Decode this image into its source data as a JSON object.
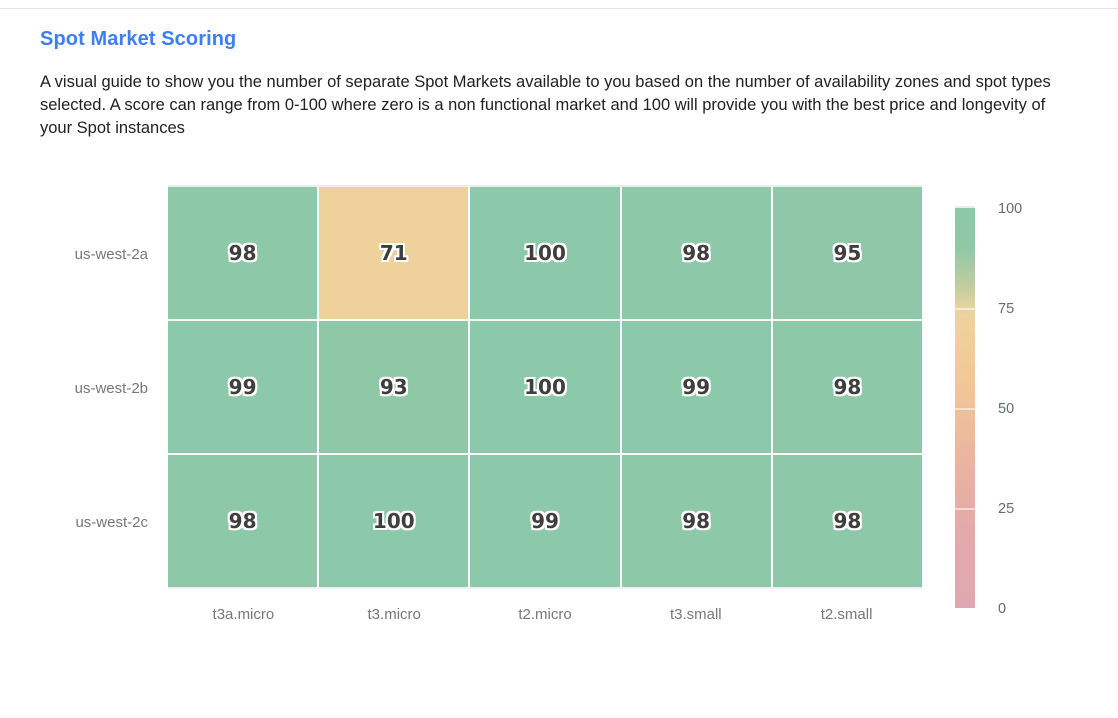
{
  "header": {
    "title": "Spot Market Scoring",
    "description": "A visual guide to show you the number of separate Spot Markets available to you based on the number of availability zones and spot types selected. A score can range from 0-100 where zero is a non functional market and 100 will provide you with the best price and longevity of your Spot instances"
  },
  "colors": {
    "title_blue": "#3d7ef4",
    "body_text": "#202124",
    "axis_label_gray": "#75787b",
    "cell_text": "#3e3e3e",
    "divider": "#e4e4e4",
    "grid_line_white": "#ffffff",
    "green_high": "#8cc8aa",
    "tan_mid": "#f1d09b",
    "pink_low": "#dfa7b1"
  },
  "chart_data": {
    "type": "heatmap",
    "title": "Spot Market Scoring",
    "rows": [
      "us-west-2a",
      "us-west-2b",
      "us-west-2c"
    ],
    "columns": [
      "t3a.micro",
      "t3.micro",
      "t2.micro",
      "t3.small",
      "t2.small"
    ],
    "values": [
      [
        98,
        71,
        100,
        98,
        95
      ],
      [
        99,
        93,
        100,
        99,
        98
      ],
      [
        98,
        100,
        99,
        98,
        98
      ]
    ],
    "value_range": [
      0,
      100
    ],
    "grid": false,
    "colorbar": {
      "position": "right",
      "ticks": [
        100,
        75,
        50,
        25,
        0
      ],
      "gradient_stops": [
        {
          "v": 100,
          "c": "#8cc8aa"
        },
        {
          "v": 90,
          "c": "#90c8a5"
        },
        {
          "v": 80,
          "c": "#c3cda0"
        },
        {
          "v": 75,
          "c": "#e8d3a0"
        },
        {
          "v": 70,
          "c": "#f1d09b"
        },
        {
          "v": 58,
          "c": "#f2c996"
        },
        {
          "v": 48,
          "c": "#eebf9a"
        },
        {
          "v": 33,
          "c": "#e8b1a1"
        },
        {
          "v": 18,
          "c": "#e3a9ab"
        },
        {
          "v": 0,
          "c": "#dfa7b1"
        }
      ]
    }
  }
}
